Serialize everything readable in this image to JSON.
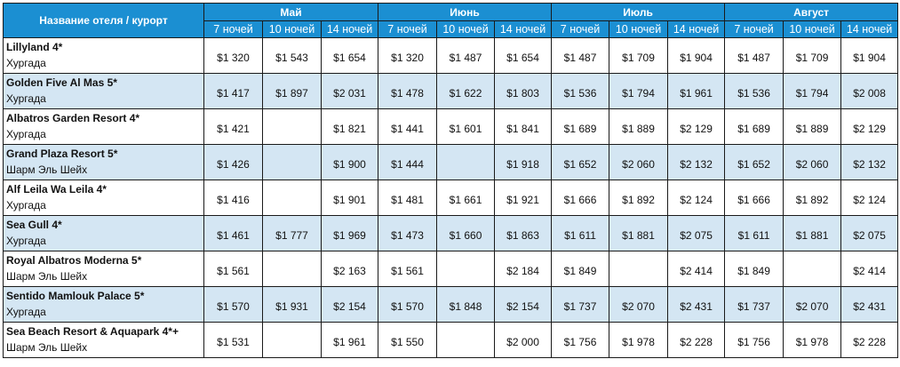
{
  "header": {
    "name_col": "Название отеля / курорт",
    "months": [
      "Май",
      "Июнь",
      "Июль",
      "Август"
    ],
    "nights": [
      "7 ночей",
      "10 ночей",
      "14 ночей"
    ]
  },
  "rows": [
    {
      "hotel": "Lillyland 4*",
      "resort": "Хургада",
      "prices": [
        "$1 320",
        "$1 543",
        "$1 654",
        "$1 320",
        "$1 487",
        "$1 654",
        "$1 487",
        "$1 709",
        "$1 904",
        "$1 487",
        "$1 709",
        "$1 904"
      ]
    },
    {
      "hotel": "Golden Five Al Mas 5*",
      "resort": "Хургада",
      "prices": [
        "$1 417",
        "$1 897",
        "$2 031",
        "$1 478",
        "$1 622",
        "$1 803",
        "$1 536",
        "$1 794",
        "$1 961",
        "$1 536",
        "$1 794",
        "$2 008"
      ]
    },
    {
      "hotel": "Albatros Garden Resort 4*",
      "resort": "Хургада",
      "prices": [
        "$1 421",
        "",
        "$1 821",
        "$1 441",
        "$1 601",
        "$1 841",
        "$1 689",
        "$1 889",
        "$2 129",
        "$1 689",
        "$1 889",
        "$2 129"
      ]
    },
    {
      "hotel": "Grand Plaza Resort 5*",
      "resort": "Шарм Эль Шейх",
      "prices": [
        "$1 426",
        "",
        "$1 900",
        "$1 444",
        "",
        "$1 918",
        "$1 652",
        "$2 060",
        "$2 132",
        "$1 652",
        "$2 060",
        "$2 132"
      ]
    },
    {
      "hotel": "Alf Leila Wa Leila 4*",
      "resort": "Хургада",
      "prices": [
        "$1 416",
        "",
        "$1 901",
        "$1 481",
        "$1 661",
        "$1 921",
        "$1 666",
        "$1 892",
        "$2 124",
        "$1 666",
        "$1 892",
        "$2 124"
      ]
    },
    {
      "hotel": "Sea Gull 4*",
      "resort": "Хургада",
      "prices": [
        "$1 461",
        "$1 777",
        "$1 969",
        "$1 473",
        "$1 660",
        "$1 863",
        "$1 611",
        "$1 881",
        "$2 075",
        "$1 611",
        "$1 881",
        "$2 075"
      ]
    },
    {
      "hotel": "Royal Albatros Moderna 5*",
      "resort": "Шарм Эль Шейх",
      "prices": [
        "$1 561",
        "",
        "$2 163",
        "$1 561",
        "",
        "$2 184",
        "$1 849",
        "",
        "$2 414",
        "$1 849",
        "",
        "$2 414"
      ]
    },
    {
      "hotel": "Sentido Mamlouk Palace 5*",
      "resort": "Хургада",
      "prices": [
        "$1 570",
        "$1 931",
        "$2 154",
        "$1 570",
        "$1 848",
        "$2 154",
        "$1 737",
        "$2 070",
        "$2 431",
        "$1 737",
        "$2 070",
        "$2 431"
      ]
    },
    {
      "hotel": "Sea Beach Resort & Aquapark 4*+",
      "resort": "Шарм Эль Шейх",
      "prices": [
        "$1 531",
        "",
        "$1 961",
        "$1 550",
        "",
        "$2 000",
        "$1 756",
        "$1 978",
        "$2 228",
        "$1 756",
        "$1 978",
        "$2 228"
      ]
    }
  ],
  "colors": {
    "header_bg": "#1b8fd2",
    "header_text": "#ffffff",
    "row_shaded": "#d4e6f3",
    "row_white": "#ffffff",
    "border": "#1a1a1a"
  }
}
